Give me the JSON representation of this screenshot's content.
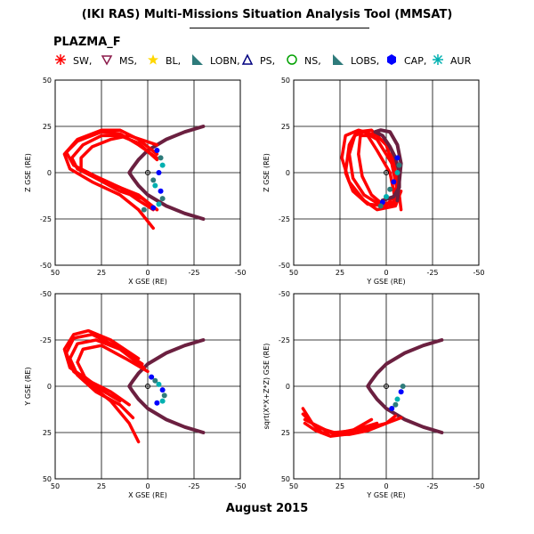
{
  "header": {
    "title": "(IKI RAS) Multi-Missions Situation Analysis Tool (MMSAT)",
    "mission": "PLAZMA_F",
    "date": "August 2015"
  },
  "legend": [
    {
      "label": "SW,",
      "color": "#ff0000",
      "icon": "asterisk"
    },
    {
      "label": "MS,",
      "color": "#8b1a4a",
      "icon": "triangle-down"
    },
    {
      "label": "BL,",
      "color": "#ffd700",
      "icon": "star"
    },
    {
      "label": "LOBN,",
      "color": "#2e7b7b",
      "icon": "triangle-corner"
    },
    {
      "label": "PS,",
      "color": "#000080",
      "icon": "triangle-up"
    },
    {
      "label": "NS,",
      "color": "#00a000",
      "icon": "circle"
    },
    {
      "label": "LOBS,",
      "color": "#2e7b7b",
      "icon": "triangle-corner"
    },
    {
      "label": "CAP,",
      "color": "#0000ff",
      "icon": "hexagon"
    },
    {
      "label": "AUR",
      "color": "#00b0b0",
      "icon": "asterisk"
    }
  ],
  "colors": {
    "orbit": "#ff0000",
    "boundary": "#6b2040",
    "cusp_blue": "#0000ff",
    "cusp_teal": "#2e7b7b",
    "cusp_cyan": "#00b0b0"
  },
  "chart_data": [
    {
      "type": "line",
      "panel": "top-left",
      "xlabel": "X GSE (RE)",
      "ylabel": "Z GSE (RE)",
      "xlim": [
        50,
        -50
      ],
      "ylim": [
        -50,
        50
      ],
      "xticks": [
        "50",
        "25",
        "0",
        "-25",
        "-50"
      ],
      "yticks": [
        "50",
        "25",
        "0",
        "-25",
        "-50"
      ],
      "grid": true,
      "series": [
        {
          "role": "boundary",
          "x": [
            -30,
            -20,
            -10,
            0,
            5,
            8,
            10,
            8,
            5,
            0,
            -10,
            -20,
            -30
          ],
          "y": [
            25,
            22,
            18,
            12,
            7,
            3,
            0,
            -3,
            -7,
            -12,
            -18,
            -22,
            -25
          ]
        },
        {
          "role": "orbit",
          "x": [
            -3,
            5,
            15,
            30,
            42,
            45,
            38,
            25,
            15,
            5,
            -5
          ],
          "y": [
            -30,
            -20,
            -12,
            -5,
            2,
            10,
            18,
            23,
            23,
            18,
            10
          ]
        },
        {
          "role": "orbit",
          "x": [
            -3,
            5,
            15,
            28,
            40,
            44,
            38,
            25,
            15,
            5,
            -5
          ],
          "y": [
            -20,
            -15,
            -8,
            -2,
            4,
            11,
            17,
            22,
            21,
            15,
            8
          ]
        },
        {
          "role": "orbit",
          "x": [
            -5,
            3,
            15,
            28,
            38,
            41,
            35,
            25,
            15,
            5,
            -5
          ],
          "y": [
            -20,
            -14,
            -10,
            -3,
            2,
            8,
            15,
            20,
            20,
            16,
            7
          ]
        },
        {
          "role": "orbit",
          "x": [
            -5,
            5,
            15,
            28,
            36,
            36,
            30,
            20,
            10,
            -5
          ],
          "y": [
            -20,
            -12,
            -8,
            -3,
            2,
            8,
            14,
            18,
            20,
            15
          ]
        },
        {
          "role": "cusp",
          "x": [
            -5,
            -7,
            -8,
            -6,
            -3,
            -4,
            -7,
            -8,
            -6,
            -3,
            2
          ],
          "y": [
            12,
            8,
            4,
            0,
            -4,
            -7,
            -10,
            -14,
            -17,
            -19,
            -20
          ]
        }
      ]
    },
    {
      "type": "line",
      "panel": "top-right",
      "xlabel": "Y GSE (RE)",
      "ylabel": "Z GSE (RE)",
      "xlim": [
        50,
        -50
      ],
      "ylim": [
        -50,
        50
      ],
      "xticks": [
        "50",
        "25",
        "0",
        "-25",
        "-50"
      ],
      "yticks": [
        "50",
        "25",
        "0",
        "-25",
        "-50"
      ],
      "grid": true,
      "series": [
        {
          "role": "orbit",
          "x": [
            -8,
            -7,
            -5,
            -3,
            5,
            15,
            22,
            24,
            20,
            12,
            5,
            -5,
            -8
          ],
          "y": [
            -20,
            -12,
            0,
            12,
            20,
            23,
            20,
            8,
            -5,
            -15,
            -20,
            -18,
            -10
          ]
        },
        {
          "role": "orbit",
          "x": [
            -7,
            -5,
            0,
            8,
            16,
            20,
            22,
            18,
            10,
            0,
            -6
          ],
          "y": [
            -15,
            0,
            15,
            23,
            22,
            15,
            0,
            -10,
            -17,
            -18,
            -10
          ]
        },
        {
          "role": "orbit",
          "x": [
            -6,
            -3,
            5,
            12,
            17,
            20,
            18,
            12,
            4,
            -4,
            -6
          ],
          "y": [
            -10,
            5,
            18,
            22,
            20,
            10,
            -3,
            -12,
            -17,
            -16,
            -5
          ]
        },
        {
          "role": "orbit",
          "x": [
            -5,
            -2,
            5,
            10,
            14,
            15,
            13,
            8,
            2,
            -4,
            -5
          ],
          "y": [
            -15,
            0,
            12,
            20,
            20,
            10,
            -2,
            -12,
            -17,
            -17,
            -10
          ]
        },
        {
          "role": "boundary",
          "x": [
            -6,
            -7,
            -8,
            -6,
            -2,
            3,
            6,
            2,
            -2,
            -5,
            -7,
            -7,
            -4,
            2
          ],
          "y": [
            -15,
            -5,
            5,
            15,
            22,
            23,
            22,
            20,
            14,
            8,
            0,
            -8,
            -13,
            -15
          ]
        },
        {
          "role": "cusp",
          "x": [
            -6,
            -7,
            -6,
            -4,
            -2,
            0,
            2,
            3
          ],
          "y": [
            8,
            4,
            0,
            -5,
            -9,
            -13,
            -16,
            -18
          ]
        }
      ]
    },
    {
      "type": "line",
      "panel": "bottom-left",
      "xlabel": "X GSE (RE)",
      "ylabel": "Y GSE (RE)",
      "xlim": [
        50,
        -50
      ],
      "ylim": [
        50,
        -50
      ],
      "xticks": [
        "50",
        "25",
        "0",
        "-25",
        "-50"
      ],
      "yticks": [
        "-50",
        "-25",
        "0",
        "25",
        "50"
      ],
      "grid": true,
      "series": [
        {
          "role": "boundary",
          "x": [
            -30,
            -20,
            -10,
            0,
            5,
            8,
            10,
            8,
            5,
            0,
            -10,
            -20,
            -30
          ],
          "y": [
            -25,
            -22,
            -18,
            -12,
            -7,
            -3,
            0,
            3,
            7,
            12,
            18,
            22,
            25
          ]
        },
        {
          "role": "orbit",
          "x": [
            5,
            20,
            32,
            40,
            45,
            42,
            30,
            20,
            10
          ],
          "y": [
            -15,
            -25,
            -30,
            -28,
            -20,
            -10,
            -2,
            3,
            10
          ]
        },
        {
          "role": "orbit",
          "x": [
            3,
            18,
            30,
            40,
            44,
            40,
            30,
            20,
            10,
            5
          ],
          "y": [
            -12,
            -22,
            -28,
            -26,
            -18,
            -8,
            0,
            8,
            20,
            30
          ]
        },
        {
          "role": "orbit",
          "x": [
            2,
            15,
            28,
            38,
            42,
            38,
            28,
            15,
            8
          ],
          "y": [
            -10,
            -20,
            -25,
            -23,
            -15,
            -6,
            3,
            10,
            17
          ]
        },
        {
          "role": "orbit",
          "x": [
            0,
            12,
            25,
            35,
            38,
            34,
            25,
            15
          ],
          "y": [
            -8,
            -15,
            -22,
            -20,
            -13,
            -5,
            2,
            8
          ]
        },
        {
          "role": "cusp",
          "x": [
            -2,
            -4,
            -6,
            -8,
            -9,
            -8,
            -5
          ],
          "y": [
            -5,
            -3,
            -1,
            2,
            5,
            8,
            9
          ]
        }
      ]
    },
    {
      "type": "line",
      "panel": "bottom-right",
      "xlabel": "Y GSE (RE)",
      "ylabel": "sqrt(X*X+Z*Z) GSE (RE)",
      "xlim": [
        50,
        -50
      ],
      "ylim": [
        -50,
        50
      ],
      "xticks": [
        "50",
        "25",
        "0",
        "-25",
        "-50"
      ],
      "yticks": [
        "-50",
        "-25",
        "0",
        "25",
        "50"
      ],
      "grid": true,
      "series": [
        {
          "role": "boundary",
          "x": [
            -30,
            -20,
            -10,
            0,
            5,
            8,
            10,
            8,
            5,
            0,
            -10,
            -20,
            -30
          ],
          "y": [
            -25,
            -22,
            -18,
            -12,
            -7,
            -3,
            0,
            3,
            7,
            12,
            18,
            22,
            25
          ]
        },
        {
          "role": "orbit",
          "x": [
            45,
            40,
            35,
            25,
            15,
            5
          ],
          "y": [
            -12,
            -20,
            -25,
            -25,
            -23,
            -20
          ]
        },
        {
          "role": "orbit",
          "x": [
            45,
            38,
            28,
            18,
            8,
            0,
            -8
          ],
          "y": [
            -15,
            -22,
            -25,
            -24,
            -22,
            -20,
            -17
          ]
        },
        {
          "role": "orbit",
          "x": [
            44,
            36,
            28,
            20,
            10,
            0,
            -5
          ],
          "y": [
            -18,
            -22,
            -26,
            -26,
            -24,
            -20,
            -16
          ]
        },
        {
          "role": "orbit",
          "x": [
            44,
            38,
            30,
            22,
            15,
            8
          ],
          "y": [
            -20,
            -24,
            -27,
            -26,
            -22,
            -18
          ]
        },
        {
          "role": "cusp",
          "x": [
            -3,
            -5,
            -6,
            -8,
            -9
          ],
          "y": [
            -12,
            -10,
            -7,
            -3,
            0
          ]
        }
      ]
    }
  ]
}
